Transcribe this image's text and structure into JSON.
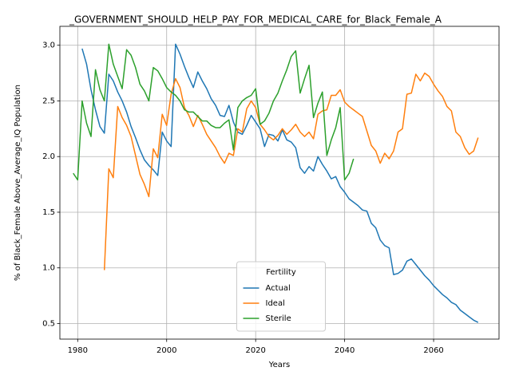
{
  "chart_data": {
    "type": "line",
    "title": "_GOVERNMENT_SHOULD_HELP_PAY_FOR_MEDICAL_CARE_for_Black_Female_A",
    "xlabel": "Years",
    "ylabel": "% of Black_Female Above_Average_IQ Population",
    "legend_title": "Fertility",
    "legend": "lower center",
    "grid": true,
    "xlim": [
      1976,
      2074.7
    ],
    "ylim": [
      0.36,
      3.17
    ],
    "xticks": [
      1980,
      2000,
      2020,
      2040,
      2060
    ],
    "yticks": [
      0.5,
      {
        "value": 1.0,
        "label": "1.0"
      },
      1.5,
      {
        "value": 2.0,
        "label": "2.0"
      },
      2.5,
      {
        "value": 3.0,
        "label": "3.0"
      }
    ],
    "x": [
      1979,
      1980,
      1981,
      1982,
      1983,
      1984,
      1985,
      1986,
      1987,
      1988,
      1989,
      1990,
      1991,
      1992,
      1993,
      1994,
      1995,
      1996,
      1997,
      1998,
      1999,
      2000,
      2001,
      2002,
      2003,
      2004,
      2005,
      2006,
      2007,
      2008,
      2009,
      2010,
      2011,
      2012,
      2013,
      2014,
      2015,
      2016,
      2017,
      2018,
      2019,
      2020,
      2021,
      2022,
      2023,
      2024,
      2025,
      2026,
      2027,
      2028,
      2029,
      2030,
      2031,
      2032,
      2033,
      2034,
      2035,
      2036,
      2037,
      2038,
      2039,
      2040,
      2041,
      2042,
      2043,
      2044,
      2045,
      2046,
      2047,
      2048,
      2049,
      2050,
      2051,
      2052,
      2053,
      2054,
      2055,
      2056,
      2057,
      2058,
      2059,
      2060,
      2061,
      2062,
      2063,
      2064,
      2065,
      2066,
      2067,
      2068,
      2069,
      2070
    ],
    "series": [
      {
        "name": "Actual",
        "color": "#1f77b4",
        "values": [
          null,
          null,
          2.97,
          2.83,
          2.6,
          2.42,
          2.27,
          2.21,
          2.74,
          2.68,
          2.58,
          2.5,
          2.4,
          2.27,
          2.17,
          2.06,
          1.97,
          1.92,
          1.88,
          1.83,
          2.22,
          2.14,
          2.09,
          3.01,
          2.92,
          2.81,
          2.71,
          2.62,
          2.76,
          2.68,
          2.61,
          2.52,
          2.46,
          2.37,
          2.36,
          2.46,
          2.31,
          2.22,
          2.2,
          2.28,
          2.37,
          2.31,
          2.25,
          2.09,
          2.2,
          2.19,
          2.14,
          2.24,
          2.15,
          2.13,
          2.08,
          1.9,
          1.85,
          1.91,
          1.87,
          2.0,
          1.93,
          1.87,
          1.8,
          1.82,
          1.73,
          1.68,
          1.62,
          1.59,
          1.56,
          1.52,
          1.51,
          1.4,
          1.36,
          1.25,
          1.2,
          1.18,
          0.94,
          0.95,
          0.98,
          1.06,
          1.08,
          1.03,
          0.98,
          0.93,
          0.89,
          0.84,
          0.8,
          0.76,
          0.73,
          0.69,
          0.67,
          0.62,
          0.59,
          0.56,
          0.53,
          0.51
        ]
      },
      {
        "name": "Ideal",
        "color": "#ff7f0e",
        "values": [
          null,
          null,
          null,
          null,
          null,
          null,
          null,
          0.98,
          1.89,
          1.81,
          2.45,
          2.35,
          2.28,
          2.18,
          2.01,
          1.84,
          1.75,
          1.64,
          2.07,
          1.99,
          2.38,
          2.28,
          2.56,
          2.7,
          2.62,
          2.44,
          2.37,
          2.27,
          2.37,
          2.29,
          2.2,
          2.14,
          2.08,
          2.0,
          1.94,
          2.03,
          2.01,
          2.25,
          2.22,
          2.43,
          2.5,
          2.44,
          2.29,
          2.24,
          2.18,
          2.15,
          2.19,
          2.25,
          2.2,
          2.24,
          2.29,
          2.22,
          2.18,
          2.22,
          2.16,
          2.38,
          2.41,
          2.42,
          2.55,
          2.55,
          2.6,
          2.49,
          2.45,
          2.42,
          2.39,
          2.36,
          2.23,
          2.1,
          2.05,
          1.94,
          2.03,
          1.98,
          2.05,
          2.22,
          2.25,
          2.56,
          2.57,
          2.74,
          2.68,
          2.75,
          2.72,
          2.65,
          2.59,
          2.54,
          2.45,
          2.41,
          2.22,
          2.18,
          2.08,
          2.02,
          2.05,
          2.17
        ]
      },
      {
        "name": "Sterile",
        "color": "#2ca02c",
        "values": [
          1.85,
          1.79,
          2.5,
          2.3,
          2.18,
          2.78,
          2.6,
          2.5,
          3.01,
          2.83,
          2.72,
          2.61,
          2.96,
          2.91,
          2.8,
          2.65,
          2.59,
          2.5,
          2.8,
          2.77,
          2.7,
          2.62,
          2.58,
          2.55,
          2.5,
          2.42,
          2.4,
          2.4,
          2.36,
          2.32,
          2.32,
          2.28,
          2.26,
          2.26,
          2.3,
          2.33,
          2.06,
          2.44,
          2.5,
          2.53,
          2.55,
          2.61,
          2.29,
          2.32,
          2.39,
          2.5,
          2.57,
          2.68,
          2.78,
          2.9,
          2.95,
          2.57,
          2.7,
          2.82,
          2.35,
          2.48,
          2.58,
          2.01,
          2.15,
          2.26,
          2.44,
          1.79,
          1.85,
          1.98,
          null,
          null,
          null,
          null,
          null,
          null,
          null,
          null,
          null,
          null,
          null,
          null,
          null,
          null,
          null,
          null,
          null,
          null,
          null,
          null,
          null,
          null,
          null,
          null,
          null,
          null,
          null,
          null
        ]
      }
    ]
  }
}
